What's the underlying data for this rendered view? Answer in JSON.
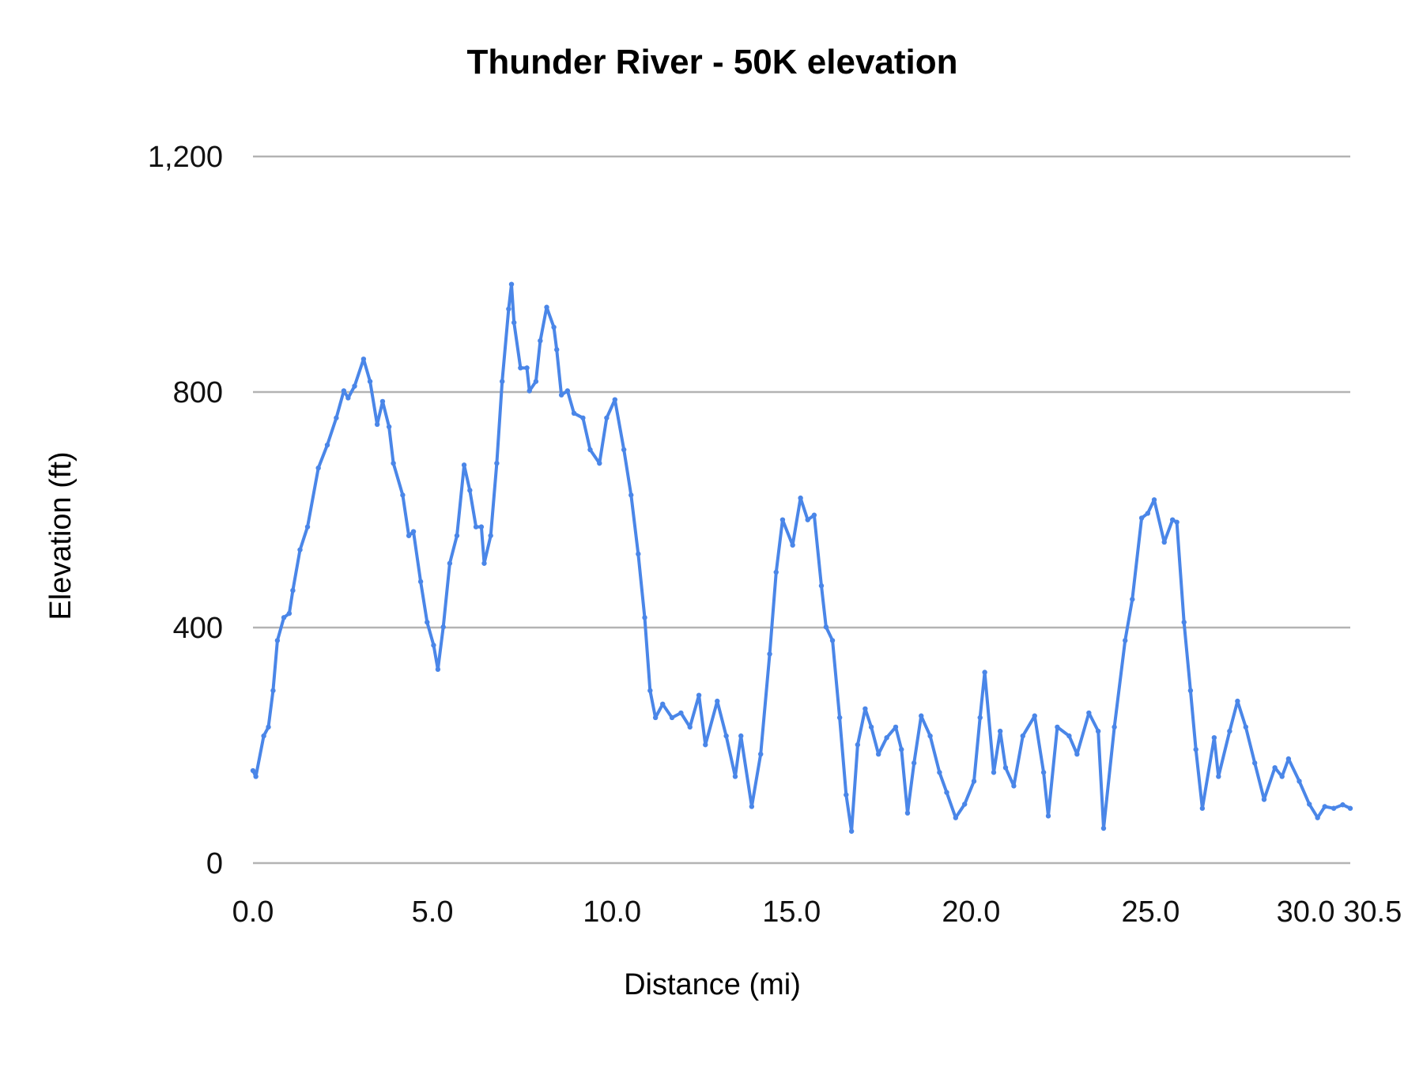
{
  "chart_data": {
    "type": "line",
    "title": "Thunder River - 50K elevation",
    "xlabel": "Distance (mi)",
    "ylabel": "Elevation (ft)",
    "xlim": [
      0,
      30.56
    ],
    "ylim": [
      0,
      1200
    ],
    "grid": true,
    "legend": "none",
    "color": "#4a86e8",
    "x_ticks": [
      0,
      5,
      10,
      15,
      20,
      25,
      30,
      30.5
    ],
    "x_tick_labels": [
      "0.0",
      "5.0",
      "10.0",
      "15.0",
      "20.0",
      "25.0",
      "30.0",
      "30.5"
    ],
    "y_ticks": [
      0,
      400,
      800,
      1200
    ],
    "y_tick_labels": [
      "0",
      "400",
      "800",
      "1,200"
    ],
    "series": [
      {
        "name": "Elevation",
        "x": [
          0,
          0.08,
          0.3,
          0.43,
          0.56,
          0.68,
          0.86,
          1.01,
          1.11,
          1.31,
          1.52,
          1.82,
          2.07,
          2.32,
          2.53,
          2.65,
          2.83,
          3.08,
          3.26,
          3.46,
          3.61,
          3.79,
          3.91,
          4.17,
          4.34,
          4.47,
          4.67,
          4.85,
          5.03,
          5.15,
          5.3,
          5.48,
          5.68,
          5.88,
          6.04,
          6.21,
          6.36,
          6.44,
          6.62,
          6.79,
          6.94,
          7.12,
          7.2,
          7.27,
          7.45,
          7.63,
          7.7,
          7.88,
          8.0,
          8.18,
          8.38,
          8.46,
          8.59,
          8.76,
          8.94,
          9.19,
          9.39,
          9.65,
          9.85,
          10.08,
          10.33,
          10.53,
          10.73,
          10.91,
          11.06,
          11.21,
          11.41,
          11.67,
          11.92,
          12.17,
          12.42,
          12.6,
          12.93,
          13.18,
          13.43,
          13.59,
          13.89,
          14.14,
          14.39,
          14.57,
          14.75,
          15.03,
          15.25,
          15.45,
          15.63,
          15.83,
          15.96,
          16.14,
          16.34,
          16.52,
          16.67,
          16.84,
          17.05,
          17.22,
          17.42,
          17.65,
          17.9,
          18.06,
          18.23,
          18.41,
          18.61,
          18.86,
          19.12,
          19.32,
          19.57,
          19.82,
          20.08,
          20.25,
          20.38,
          20.63,
          20.81,
          20.96,
          21.19,
          21.44,
          21.77,
          22.02,
          22.15,
          22.4,
          22.73,
          22.95,
          23.28,
          23.54,
          23.69,
          23.99,
          24.29,
          24.49,
          24.75,
          24.92,
          25.1,
          25.38,
          25.61,
          25.73,
          25.93,
          26.11,
          26.26,
          26.44,
          26.77,
          26.89,
          27.2,
          27.42,
          27.65,
          27.9,
          28.16,
          28.46,
          28.66,
          28.84,
          29.14,
          29.42,
          29.65,
          29.85,
          30.1,
          30.35,
          30.56
        ],
        "y": [
          157,
          147,
          216,
          231,
          293,
          378,
          417,
          424,
          463,
          532,
          571,
          671,
          710,
          756,
          802,
          790,
          810,
          856,
          818,
          745,
          784,
          741,
          679,
          625,
          556,
          563,
          478,
          409,
          370,
          329,
          401,
          509,
          556,
          676,
          633,
          571,
          571,
          509,
          556,
          679,
          818,
          941,
          983,
          918,
          841,
          841,
          802,
          818,
          887,
          944,
          910,
          872,
          795,
          802,
          764,
          756,
          702,
          679,
          756,
          787,
          702,
          625,
          525,
          417,
          293,
          247,
          270,
          247,
          255,
          231,
          285,
          201,
          275,
          216,
          147,
          216,
          96,
          185,
          355,
          494,
          583,
          540,
          620,
          583,
          591,
          471,
          401,
          378,
          247,
          116,
          54,
          201,
          262,
          231,
          185,
          213,
          231,
          193,
          85,
          170,
          250,
          216,
          154,
          120,
          77,
          100,
          139,
          247,
          324,
          154,
          224,
          162,
          131,
          216,
          250,
          154,
          80,
          231,
          216,
          185,
          255,
          224,
          59,
          231,
          378,
          448,
          586,
          594,
          617,
          545,
          583,
          579,
          409,
          293,
          193,
          93,
          213,
          147,
          224,
          275,
          231,
          170,
          108,
          162,
          147,
          177,
          139,
          100,
          77,
          96,
          93,
          99,
          93
        ]
      }
    ]
  }
}
